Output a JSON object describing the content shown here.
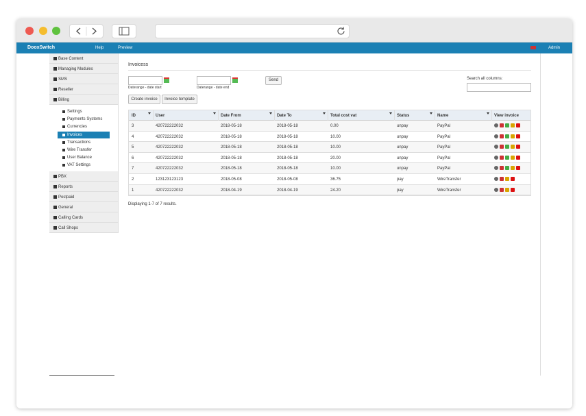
{
  "navbar": {
    "brand": "DooxSwitch",
    "links": [
      "Help",
      "Preview"
    ],
    "user": "Admin"
  },
  "sidebar": {
    "top": [
      "Base Content",
      "Managing Modules",
      "SMS",
      "Reseller",
      "Billing"
    ],
    "billing": [
      "Settings",
      "Payments Systems",
      "Currencies",
      "Invoices",
      "Transactions",
      "Wire Transfer",
      "User Balance",
      "VAT Settings"
    ],
    "bottom": [
      "PBX",
      "Reports",
      "Postpaid",
      "General",
      "Calling Cards",
      "Call Shops"
    ]
  },
  "main": {
    "title": "Invoicess",
    "date_start_label": "Daterange - date start",
    "date_end_label": "Daterange - date end",
    "send": "Send",
    "search_label": "Search all columns:",
    "buttons": [
      "Create invoice",
      "Invoice template"
    ],
    "table": {
      "columns": [
        "ID",
        "User",
        "Date From",
        "Date To",
        "Total cost vat",
        "Status",
        "Name",
        "View invoice"
      ],
      "rows": [
        [
          "3",
          "420722222032",
          "2018-05-18",
          "2018-05-18",
          "0.00",
          "unpay",
          "PayPal"
        ],
        [
          "4",
          "420722222032",
          "2018-05-18",
          "2018-05-18",
          "10.00",
          "unpay",
          "PayPal"
        ],
        [
          "5",
          "420722222032",
          "2018-05-18",
          "2018-05-18",
          "10.00",
          "unpay",
          "PayPal"
        ],
        [
          "6",
          "420722222032",
          "2018-05-18",
          "2018-05-18",
          "20.00",
          "unpay",
          "PayPal"
        ],
        [
          "7",
          "420722222032",
          "2018-05-18",
          "2018-05-18",
          "10.00",
          "unpay",
          "PayPal"
        ],
        [
          "2",
          "123123123123",
          "2018-05-08",
          "2018-05-08",
          "36.75",
          "pay",
          "WireTransfer"
        ],
        [
          "1",
          "420722222032",
          "2018-04-19",
          "2018-04-19",
          "24.20",
          "pay",
          "WireTransfer"
        ]
      ]
    },
    "summary": "Displaying 1-7 of 7 results."
  }
}
